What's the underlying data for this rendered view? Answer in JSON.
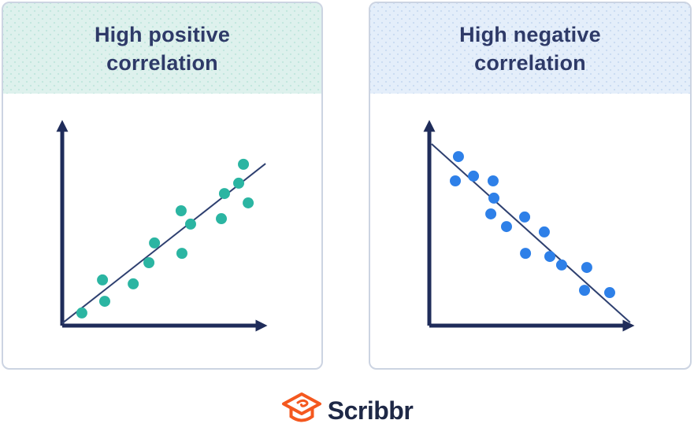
{
  "cards": [
    {
      "title": "High positive correlation",
      "header_bg": "#def1ed",
      "header_dot_color": "#c3e7df"
    },
    {
      "title": "High negative correlation",
      "header_bg": "#e4eefa",
      "header_dot_color": "#cbdcf2"
    }
  ],
  "logo": {
    "text": "Scribbr",
    "icon_color": "#f4581f",
    "text_color": "#1e2846"
  },
  "chart_data": [
    {
      "type": "scatter",
      "title": "High positive correlation",
      "xlabel": "",
      "ylabel": "",
      "xlim": [
        0,
        100
      ],
      "ylim": [
        0,
        100
      ],
      "grid": false,
      "legend": false,
      "correlation": "positive",
      "point_color": "#2bb5a2",
      "axis_color": "#1f2c5a",
      "trend_color": "#2e4070",
      "points": [
        [
          9.5,
          6.1
        ],
        [
          20.6,
          11.7
        ],
        [
          19.5,
          22.0
        ],
        [
          34.4,
          20.1
        ],
        [
          42.0,
          30.3
        ],
        [
          44.7,
          39.8
        ],
        [
          57.6,
          55.3
        ],
        [
          62.2,
          48.9
        ],
        [
          58.0,
          34.8
        ],
        [
          77.1,
          51.5
        ],
        [
          78.6,
          63.6
        ],
        [
          85.5,
          68.6
        ],
        [
          87.8,
          77.7
        ],
        [
          90.1,
          59.1
        ]
      ],
      "trend_line": {
        "x1": 0.0,
        "y1": 1.1,
        "x2": 98.5,
        "y2": 78.0
      }
    },
    {
      "type": "scatter",
      "title": "High negative correlation",
      "xlabel": "",
      "ylabel": "",
      "xlim": [
        0,
        100
      ],
      "ylim": [
        0,
        100
      ],
      "grid": false,
      "legend": false,
      "correlation": "negative",
      "point_color": "#2e80e8",
      "axis_color": "#1f2c5a",
      "trend_color": "#2e4070",
      "points": [
        [
          14.1,
          81.4
        ],
        [
          12.6,
          69.7
        ],
        [
          21.4,
          72.0
        ],
        [
          30.9,
          69.7
        ],
        [
          31.3,
          61.4
        ],
        [
          29.8,
          53.8
        ],
        [
          37.4,
          47.7
        ],
        [
          46.2,
          52.3
        ],
        [
          55.7,
          45.1
        ],
        [
          46.6,
          34.8
        ],
        [
          58.4,
          33.3
        ],
        [
          64.1,
          29.2
        ],
        [
          76.3,
          28.0
        ],
        [
          75.2,
          17.0
        ],
        [
          87.4,
          15.9
        ]
      ],
      "trend_line": {
        "x1": 1.1,
        "y1": 87.5,
        "x2": 97.3,
        "y2": 1.5
      }
    }
  ]
}
